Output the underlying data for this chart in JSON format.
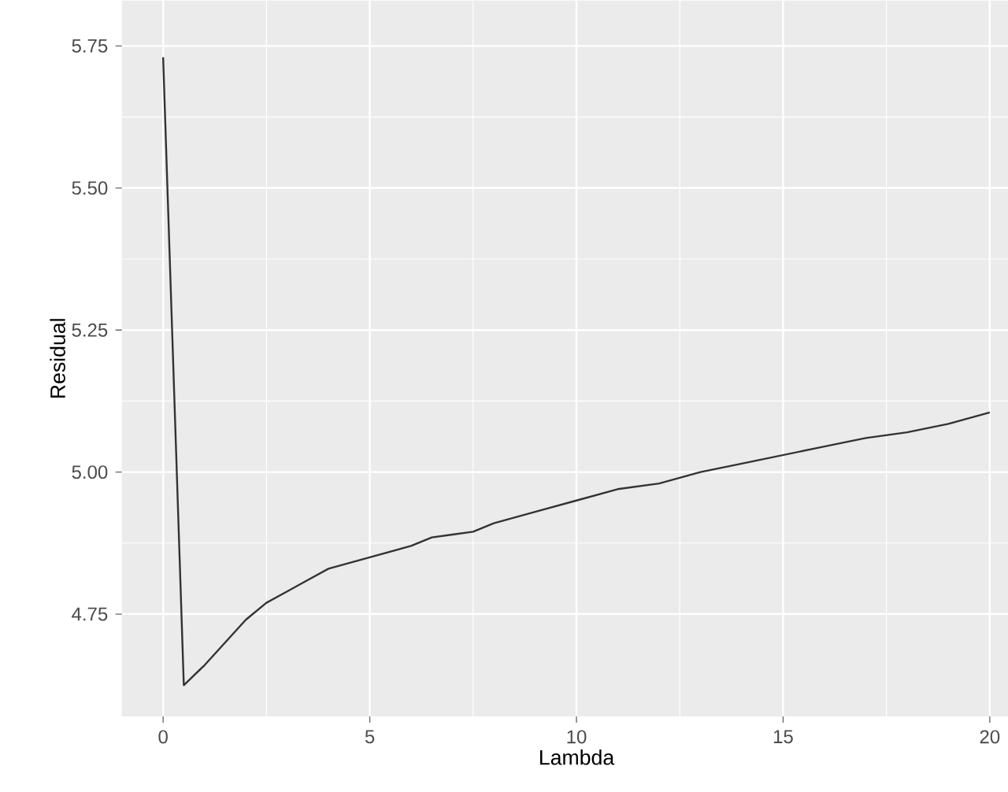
{
  "chart_data": {
    "type": "line",
    "xlabel": "Lambda",
    "ylabel": "Residual",
    "color": "#333333",
    "grid": true,
    "x": [
      0,
      0.5,
      1,
      1.5,
      2,
      2.5,
      3,
      3.5,
      4,
      4.5,
      5,
      6,
      6.5,
      7,
      7.5,
      8,
      9,
      10,
      11,
      12,
      13,
      14,
      15,
      16,
      17,
      18,
      19,
      20
    ],
    "values": [
      5.73,
      4.625,
      4.66,
      4.7,
      4.74,
      4.77,
      4.79,
      4.81,
      4.83,
      4.84,
      4.85,
      4.87,
      4.885,
      4.89,
      4.895,
      4.91,
      4.93,
      4.95,
      4.97,
      4.98,
      5.0,
      5.015,
      5.03,
      5.045,
      5.06,
      5.07,
      5.085,
      5.105
    ],
    "xlim": [
      -1,
      21
    ],
    "ylim": [
      4.57,
      5.83
    ],
    "xticks": [
      0,
      5,
      10,
      15,
      20
    ],
    "yticks": [
      {
        "value": 4.75,
        "label": "4.75"
      },
      {
        "value": 5.0,
        "label": "5.00"
      },
      {
        "value": 5.25,
        "label": "5.25"
      },
      {
        "value": 5.5,
        "label": "5.50"
      },
      {
        "value": 5.75,
        "label": "5.75"
      }
    ]
  }
}
